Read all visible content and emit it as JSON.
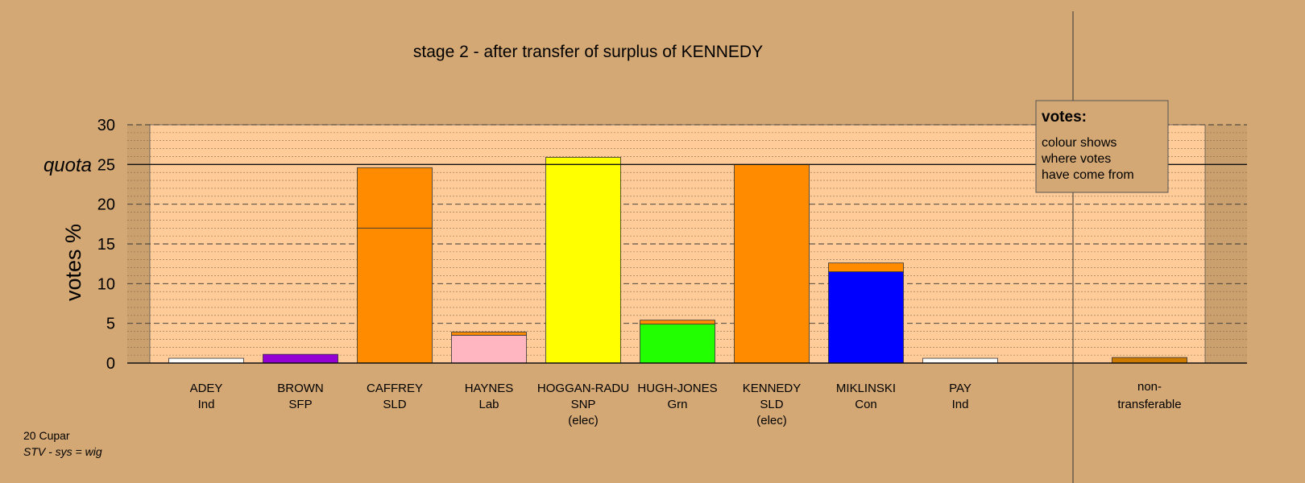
{
  "chart_data": {
    "type": "bar",
    "stacked": true,
    "title": "stage 2 - after transfer of surplus of KENNEDY",
    "ylabel": "votes %",
    "ylim": [
      0,
      30
    ],
    "yticks": [
      "0",
      "5",
      "10",
      "15",
      "20",
      "25",
      "30"
    ],
    "quota_label": "quota",
    "quota": 25,
    "grid": true,
    "legend": {
      "position": "top-right",
      "title": "votes:",
      "lines": [
        "colour shows",
        "where votes",
        "have come from"
      ]
    },
    "categories": [
      {
        "name": "ADEY",
        "party": "Ind",
        "note": "",
        "segments": [
          {
            "value": 0.6,
            "color": "#ffffff"
          }
        ]
      },
      {
        "name": "BROWN",
        "party": "SFP",
        "note": "",
        "segments": [
          {
            "value": 1.1,
            "color": "#9400d3"
          }
        ]
      },
      {
        "name": "CAFFREY",
        "party": "SLD",
        "note": "",
        "segments": [
          {
            "value": 17.0,
            "color": "#ff8c00"
          },
          {
            "value": 7.6,
            "color": "#ff8c00"
          }
        ]
      },
      {
        "name": "HAYNES",
        "party": "Lab",
        "note": "",
        "segments": [
          {
            "value": 3.5,
            "color": "#ffb6c1"
          },
          {
            "value": 0.4,
            "color": "#ff8c00"
          }
        ]
      },
      {
        "name": "HOGGAN-RADU",
        "party": "SNP",
        "note": "(elec)",
        "segments": [
          {
            "value": 25.9,
            "color": "#ffff00"
          }
        ]
      },
      {
        "name": "HUGH-JONES",
        "party": "Grn",
        "note": "",
        "segments": [
          {
            "value": 4.9,
            "color": "#22ff00"
          },
          {
            "value": 0.5,
            "color": "#ff8c00"
          }
        ]
      },
      {
        "name": "KENNEDY",
        "party": "SLD",
        "note": "(elec)",
        "segments": [
          {
            "value": 25.0,
            "color": "#ff8c00"
          }
        ]
      },
      {
        "name": "MIKLINSKI",
        "party": "Con",
        "note": "",
        "segments": [
          {
            "value": 11.5,
            "color": "#0000ff"
          },
          {
            "value": 1.1,
            "color": "#ff8c00"
          }
        ]
      },
      {
        "name": "PAY",
        "party": "Ind",
        "note": "",
        "segments": [
          {
            "value": 0.6,
            "color": "#ffffff"
          }
        ]
      }
    ],
    "nontransferable": {
      "label_1": "non-",
      "label_2": "transferable",
      "value": 0.7,
      "color": "#cc7a00"
    }
  },
  "footer": {
    "line1": "20 Cupar",
    "line2": "STV - sys = wig"
  },
  "colors": {
    "background": "#d4a874",
    "plot_area": "#ffcc99",
    "shade": "#c9a06e"
  }
}
